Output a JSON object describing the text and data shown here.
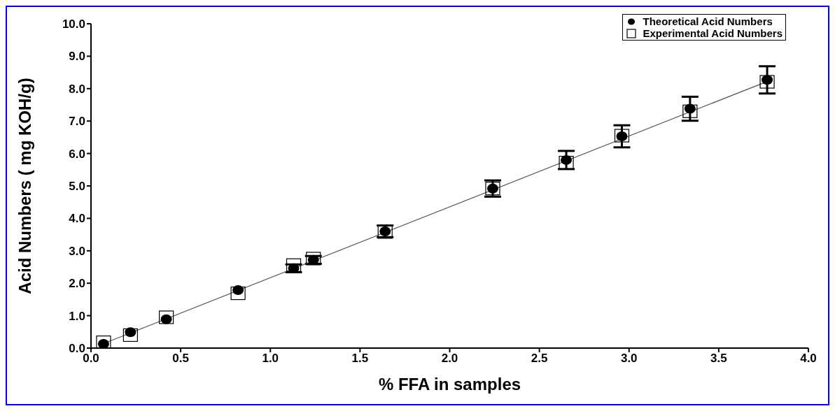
{
  "chart_data": {
    "type": "scatter",
    "xlabel": "% FFA in samples",
    "ylabel": "Acid Numbers ( mg KOH/g)",
    "series": [
      {
        "name": "Theoretical Acid Numbers",
        "type": "scatter",
        "marker": "circle",
        "color": "#000000",
        "x": [
          0.07,
          0.22,
          0.42,
          0.82,
          1.13,
          1.24,
          1.64,
          2.24,
          2.65,
          2.96,
          3.34,
          3.77
        ],
        "values": [
          0.13,
          0.49,
          0.89,
          1.79,
          2.46,
          2.72,
          3.6,
          4.92,
          5.8,
          6.53,
          7.38,
          8.27
        ],
        "errors": [
          null,
          null,
          null,
          null,
          0.12,
          0.12,
          0.18,
          0.25,
          0.28,
          0.34,
          0.37,
          0.42
        ]
      },
      {
        "name": "Experimental Acid Numbers",
        "type": "scatter",
        "marker": "square",
        "color": "#000000",
        "x": [
          0.07,
          0.22,
          0.42,
          0.82,
          1.13,
          1.24,
          1.64,
          2.24,
          2.65,
          2.96,
          3.34,
          3.77
        ],
        "values": [
          0.18,
          0.4,
          0.95,
          1.69,
          2.56,
          2.76,
          3.58,
          4.92,
          5.72,
          6.55,
          7.3,
          8.21
        ]
      },
      {
        "type": "line",
        "color": "#555555",
        "x": [
          0.07,
          3.77
        ],
        "values": [
          0.14,
          8.22
        ]
      }
    ],
    "xlim": [
      0,
      4
    ],
    "ylim": [
      0,
      10
    ],
    "xticks": [
      {
        "value": 0,
        "label": "0.0"
      },
      0.5,
      {
        "value": 1,
        "label": "1.0"
      },
      1.5,
      {
        "value": 2,
        "label": "2.0"
      },
      2.5,
      {
        "value": 3,
        "label": "3.0"
      },
      3.5,
      {
        "value": 4,
        "label": "4.0"
      }
    ],
    "yticks": [
      {
        "value": 0,
        "label": "0.0"
      },
      {
        "value": 1,
        "label": "1.0"
      },
      {
        "value": 2,
        "label": "2.0"
      },
      {
        "value": 3,
        "label": "3.0"
      },
      {
        "value": 4,
        "label": "4.0"
      },
      {
        "value": 5,
        "label": "5.0"
      },
      {
        "value": 6,
        "label": "6.0"
      },
      {
        "value": 7,
        "label": "7.0"
      },
      {
        "value": 8,
        "label": "8.0"
      },
      {
        "value": 9,
        "label": "9.0"
      },
      {
        "value": 10,
        "label": "10.0"
      }
    ],
    "grid": false,
    "legend": "top right"
  }
}
